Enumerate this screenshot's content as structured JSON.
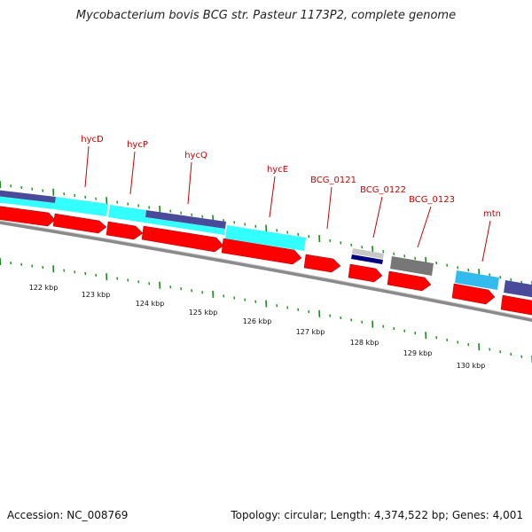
{
  "title": "Mycobacterium bovis BCG str. Pasteur 1173P2, complete genome",
  "accession_text": "Accession: NC_008769",
  "summary_text": "Topology: circular; Length: 4,374,522 bp; Genes: 4,001",
  "colors": {
    "cds": "#ff0000",
    "cyan": "#33ffff",
    "navy": "#4a4a9a",
    "darkblue": "#000080",
    "grey": "#777777",
    "lightgrey": "#c8c8c8",
    "skyblue": "#33bbee",
    "backbone": "#8a8a8a",
    "label": "#cc0000",
    "tick": "#1a8a1a"
  },
  "gene_labels": [
    "hycD",
    "hycP",
    "hycQ",
    "hycE",
    "BCG_0121",
    "BCG_0122",
    "BCG_0123",
    "mtn"
  ],
  "kbp_labels": [
    "122 kbp",
    "123 kbp",
    "124 kbp",
    "125 kbp",
    "126 kbp",
    "127 kbp",
    "128 kbp",
    "129 kbp",
    "130 kbp"
  ]
}
